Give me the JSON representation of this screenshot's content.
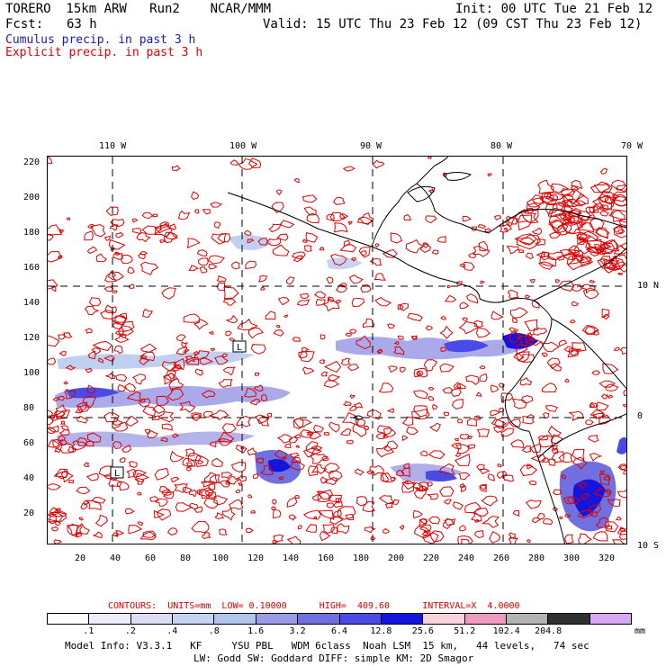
{
  "header": {
    "model": "TORERO  15km ARW   Run2    NCAR/MMM",
    "init": "Init: 00 UTC Tue 21 Feb 12",
    "fcst_label": "Fcst:",
    "fcst_value": "63 h",
    "valid": "Valid: 15 UTC Thu 23 Feb 12 (09 CST Thu 23 Feb 12)",
    "legend_cumulus": "Cumulus precip. in past 3 h",
    "legend_explicit": "Explicit precip. in past 3 h",
    "cumulus_color": "#1a1ab4",
    "explicit_color": "#e00000"
  },
  "map": {
    "top_lon_labels": [
      "110 W",
      "100 W",
      "90 W",
      "80 W",
      "70 W"
    ],
    "right_lat_labels": [
      "10 N",
      "0",
      "10 S"
    ],
    "left_y_ticks": [
      "220",
      "200",
      "180",
      "160",
      "140",
      "120",
      "100",
      "80",
      "60",
      "40",
      "20"
    ],
    "bottom_x_ticks": [
      "20",
      "40",
      "60",
      "80",
      "100",
      "120",
      "140",
      "160",
      "180",
      "200",
      "220",
      "240",
      "260",
      "280",
      "300",
      "320"
    ],
    "markers": [
      "L",
      "L"
    ],
    "contour_color": "#e00000",
    "coast_color": "#000000"
  },
  "colorbar": {
    "contours_text": "CONTOURS:  UNITS=mm  LOW= 0.10000      HIGH=  409.60      INTERVAL=X  4.0000",
    "colors": [
      "#ffffff",
      "#ededfa",
      "#dcdcf6",
      "#c6d4f4",
      "#b0c4ee",
      "#9b9be6",
      "#7070e0",
      "#4a4ae6",
      "#1414dc",
      "#f8d2dc",
      "#f09ac0",
      "#b4b4b4",
      "#303030",
      "#d8a8f4"
    ],
    "labels": [
      ".1",
      ".2",
      ".4",
      ".8",
      "1.6",
      "3.2",
      "6.4",
      "12.8",
      "25.6",
      "51.2",
      "102.4",
      "204.8"
    ],
    "unit": "mm"
  },
  "footer": {
    "line1": "Model Info: V3.3.1   KF     YSU PBL   WDM 6class  Noah LSM  15 km,   44 levels,   74 sec",
    "line2": "LW: Godd SW: Goddard DIFF: simple KM: 2D Smagor"
  }
}
